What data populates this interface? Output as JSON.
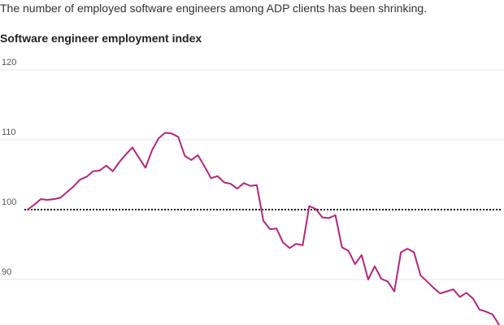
{
  "subtitle": "The number of employed software engineers among ADP clients has been shrinking.",
  "chart_data": {
    "type": "line",
    "title": "Software engineer employment index",
    "xlabel": "",
    "ylabel": "",
    "ylim": [
      84,
      120
    ],
    "yticks": [
      90,
      100,
      110,
      120
    ],
    "grid": true,
    "reference_line": {
      "value": 100,
      "style": "dotted"
    },
    "color": "#b5267b",
    "series": [
      {
        "values": [
          100.0,
          100.7,
          101.5,
          101.4,
          101.5,
          101.7,
          102.5,
          103.3,
          104.3,
          104.7,
          105.5,
          105.6,
          106.3,
          105.5,
          106.8,
          107.9,
          108.9,
          107.4,
          106.0,
          108.5,
          110.2,
          111.0,
          110.9,
          110.4,
          107.7,
          107.1,
          107.8,
          106.2,
          104.5,
          104.8,
          103.9,
          103.7,
          103.0,
          103.8,
          103.4,
          103.5,
          98.4,
          97.2,
          97.3,
          95.3,
          94.5,
          95.1,
          94.9,
          100.5,
          100.1,
          98.9,
          98.8,
          99.2,
          94.6,
          94.1,
          92.2,
          93.5,
          90.0,
          91.9,
          90.1,
          89.7,
          88.3,
          93.9,
          94.4,
          93.9,
          90.6,
          89.7,
          88.8,
          88.0,
          88.3,
          88.6,
          87.5,
          88.1,
          87.3,
          85.7,
          85.4,
          85.0,
          83.5
        ]
      }
    ]
  }
}
